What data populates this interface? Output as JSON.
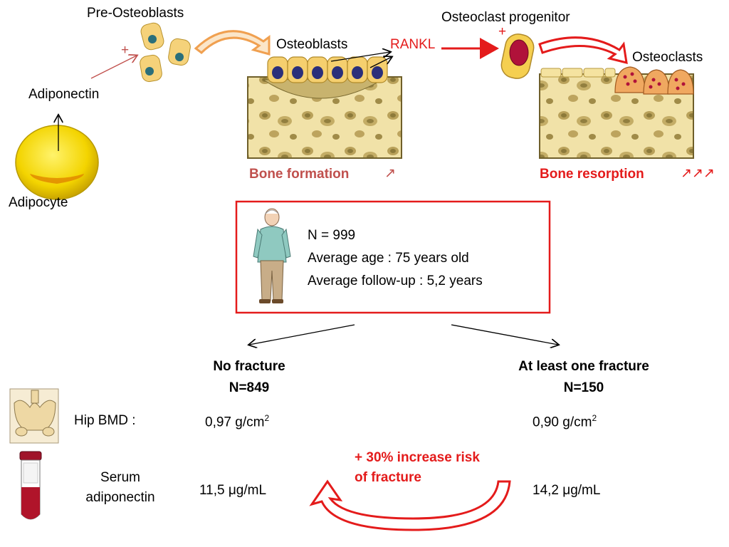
{
  "labels": {
    "pre_osteoblasts": "Pre-Osteoblasts",
    "plus_pre": "+",
    "adiponectin": "Adiponectin",
    "adipocyte": "Adipocyte",
    "osteoblasts": "Osteoblasts",
    "rankl": "RANKL",
    "osteoclast_progenitor": "Osteoclast progenitor",
    "plus_progenitor": "+",
    "osteoclasts": "Osteoclasts",
    "bone_formation": "Bone formation",
    "bone_formation_arrows": "↗",
    "bone_resorption": "Bone resorption",
    "bone_resorption_arrows": "↗↗↗"
  },
  "study": {
    "n": "N = 999",
    "age": "Average age : 75 years old",
    "follow_up": "Average follow-up : 5,2 years"
  },
  "groups": {
    "left": {
      "title": "No fracture",
      "n": "N=849",
      "bmd": "0,97 g/cm",
      "adiponectin": "11,5 μg/mL"
    },
    "right": {
      "title": "At least one fracture",
      "n": "N=150",
      "bmd": "0,90 g/cm",
      "adiponectin": "14,2 μg/mL"
    },
    "bmd_exponent": "2"
  },
  "rows": {
    "hip_bmd": "Hip BMD :",
    "serum_line1": "Serum",
    "serum_line2": "adiponectin"
  },
  "risk": {
    "line1": "+ 30% increase risk",
    "line2": "of fracture"
  },
  "colors": {
    "accent_red": "#e41b1b",
    "rose": "#c0504d",
    "bone": "#f3e2a6",
    "cell": "#f5d27a",
    "nucleus": "#2b2f7a"
  }
}
